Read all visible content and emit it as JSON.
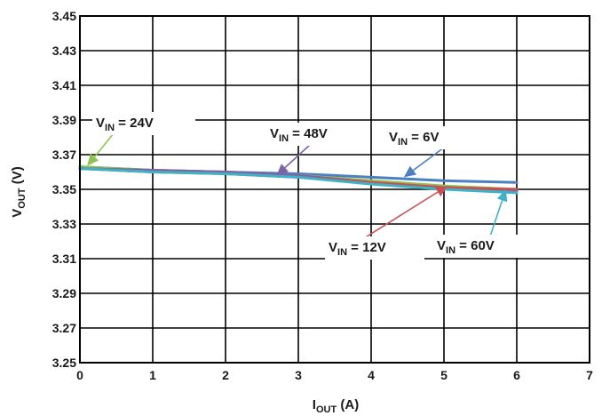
{
  "chart_data": {
    "type": "line",
    "title": "",
    "xlabel": {
      "main": "I",
      "sub": "OUT",
      "unit": " (A)"
    },
    "ylabel": {
      "main": "V",
      "sub": "OUT",
      "unit": " (V)"
    },
    "xlim": [
      0,
      7
    ],
    "ylim": [
      3.25,
      3.45
    ],
    "xticks": [
      "0",
      "1",
      "2",
      "3",
      "4",
      "5",
      "6",
      "7"
    ],
    "yticks": [
      "3.25",
      "3.27",
      "3.29",
      "3.31",
      "3.33",
      "3.35",
      "3.37",
      "3.39",
      "3.41",
      "3.43",
      "3.45"
    ],
    "grid": true,
    "legend": "none",
    "series": [
      {
        "name": "V_IN = 6V",
        "color": "#4a7fc1",
        "x": [
          0,
          1,
          2,
          3,
          4,
          5,
          6
        ],
        "y": [
          3.363,
          3.361,
          3.36,
          3.359,
          3.357,
          3.355,
          3.354
        ]
      },
      {
        "name": "V_IN = 24V",
        "color": "#8cc44f",
        "x": [
          0,
          1,
          2,
          3,
          4,
          5,
          6
        ],
        "y": [
          3.363,
          3.361,
          3.36,
          3.358,
          3.355,
          3.352,
          3.35
        ]
      },
      {
        "name": "V_IN = 48V",
        "color": "#7e62a8",
        "x": [
          0,
          1,
          2,
          3,
          4,
          5,
          6
        ],
        "y": [
          3.362,
          3.361,
          3.36,
          3.358,
          3.354,
          3.351,
          3.349
        ]
      },
      {
        "name": "V_IN = 12V",
        "color": "#c85054",
        "x": [
          0,
          1,
          2,
          3,
          4,
          5,
          6
        ],
        "y": [
          3.362,
          3.36,
          3.359,
          3.357,
          3.354,
          3.351,
          3.35
        ]
      },
      {
        "name": "V_IN = 60V",
        "color": "#3fb3c6",
        "x": [
          0,
          1,
          2,
          3,
          4,
          5,
          6
        ],
        "y": [
          3.362,
          3.36,
          3.359,
          3.357,
          3.353,
          3.35,
          3.348
        ]
      }
    ],
    "annotations": [
      {
        "main": "V",
        "sub": "IN",
        "rest": " = 24V",
        "series": "V_IN = 24V",
        "color": "#8cc44f",
        "point": [
          0.1,
          3.3635
        ]
      },
      {
        "main": "V",
        "sub": "IN",
        "rest": " = 48V",
        "series": "V_IN = 48V",
        "color": "#7e62a8",
        "point": [
          2.7,
          3.358
        ]
      },
      {
        "main": "V",
        "sub": "IN",
        "rest": " = 6V",
        "series": "V_IN = 6V",
        "color": "#4a7fc1",
        "point": [
          4.45,
          3.357
        ]
      },
      {
        "main": "V",
        "sub": "IN",
        "rest": " = 12V",
        "series": "V_IN = 12V",
        "color": "#c85054",
        "point": [
          5.05,
          3.352
        ]
      },
      {
        "main": "V",
        "sub": "IN",
        "rest": " = 60V",
        "series": "V_IN = 60V",
        "color": "#3fb3c6",
        "point": [
          5.85,
          3.35
        ]
      }
    ]
  }
}
